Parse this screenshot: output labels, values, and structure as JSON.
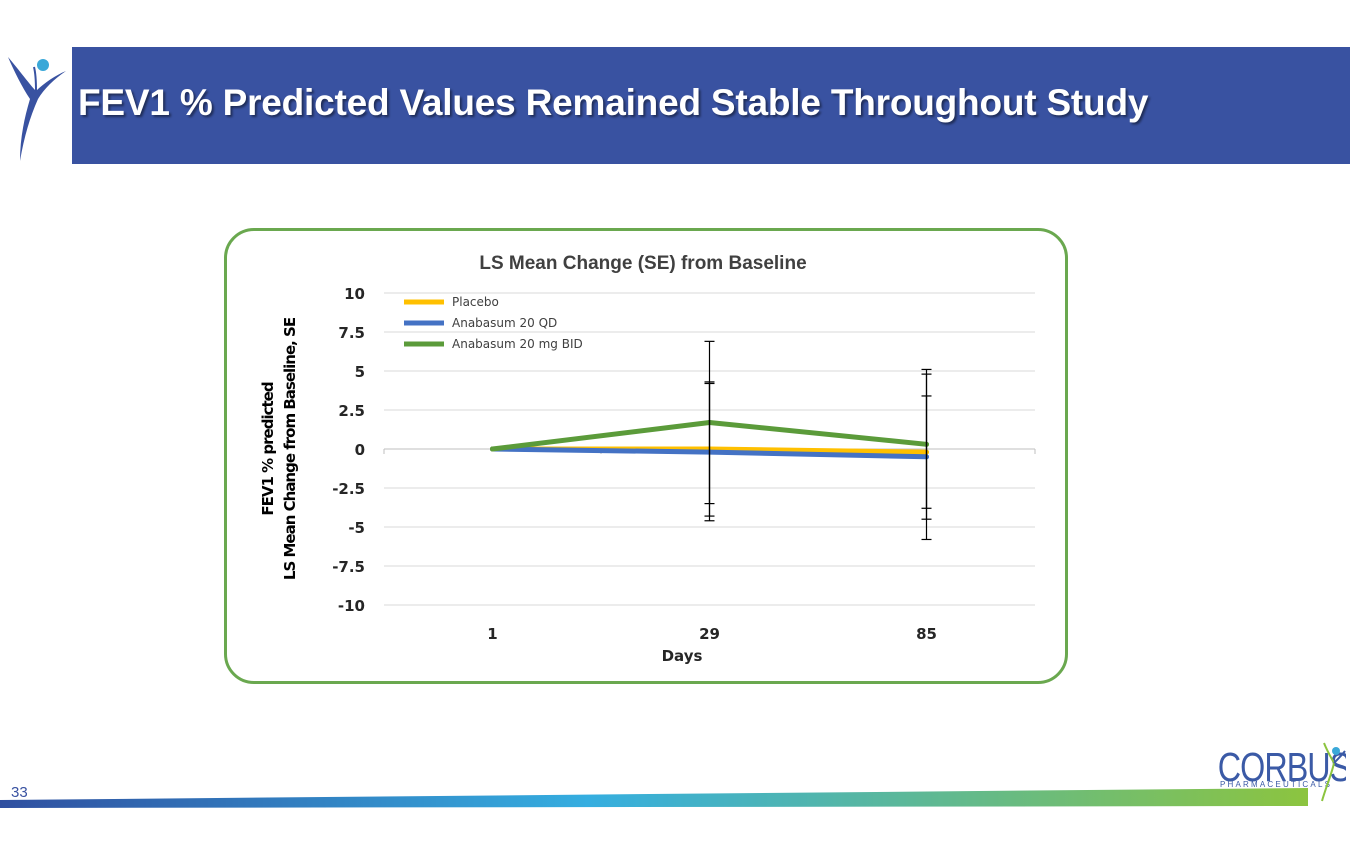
{
  "slide": {
    "title": "FEV1 % Predicted Values Remained Stable Throughout Study",
    "page_number": "33",
    "logo_text": "CORBUS",
    "logo_subtext": "PHARMACEUTICALS",
    "colors": {
      "header": "#3952a1",
      "frame": "#6aa84f"
    }
  },
  "chart_data": {
    "type": "line",
    "title": "LS Mean Change (SE) from Baseline",
    "xlabel": "Days",
    "ylabel_line1": "FEV1 % predicted",
    "ylabel_line2": "LS Mean Change from Baseline, SE",
    "categories": [
      "1",
      "29",
      "85"
    ],
    "ylim": [
      -10,
      10
    ],
    "yticks": [
      "10",
      "7.5",
      "5",
      "2.5",
      "0",
      "-2.5",
      "-5",
      "-7.5",
      "-10"
    ],
    "grid": true,
    "legend_position": "top-left",
    "series": [
      {
        "name": "Placebo",
        "color": "#ffc000",
        "values": [
          0,
          0,
          -0.2
        ],
        "error": [
          null,
          4.3,
          3.6
        ]
      },
      {
        "name": "Anabasum 20 QD",
        "color": "#4472c4",
        "values": [
          0,
          -0.2,
          -0.5
        ],
        "error": [
          null,
          4.4,
          5.3
        ]
      },
      {
        "name": "Anabasum 20 mg BID",
        "color": "#5b9b3a",
        "values": [
          0,
          1.7,
          0.3
        ],
        "error": [
          null,
          5.2,
          4.8
        ]
      }
    ]
  }
}
